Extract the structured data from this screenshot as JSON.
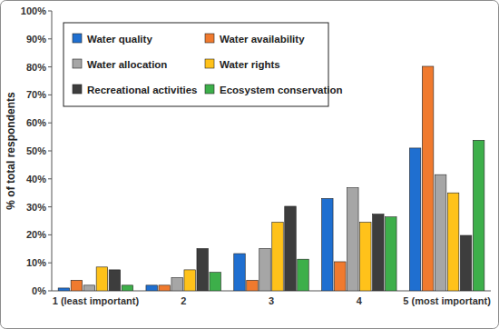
{
  "chart_data": {
    "type": "bar",
    "y_label": "% of total respondents",
    "categories": [
      "1 (least important)",
      "2",
      "3",
      "4",
      "5 (most important)"
    ],
    "series": [
      {
        "name": "Water quality",
        "color": "#1f6fd0",
        "values": [
          1.0,
          2.0,
          13.3,
          33.0,
          51.0
        ]
      },
      {
        "name": "Water availability",
        "color": "#f07a2e",
        "values": [
          3.8,
          2.0,
          3.8,
          10.4,
          80.2
        ]
      },
      {
        "name": "Water allocation",
        "color": "#a6a6a6",
        "values": [
          2.0,
          4.7,
          15.1,
          36.8,
          41.5
        ]
      },
      {
        "name": "Water rights",
        "color": "#ffc21a",
        "values": [
          8.5,
          7.5,
          24.5,
          24.5,
          35.0
        ]
      },
      {
        "name": "Recreational activities",
        "color": "#3d3d3d",
        "values": [
          7.5,
          15.1,
          30.2,
          27.4,
          19.8
        ]
      },
      {
        "name": "Ecosystem conservation",
        "color": "#3daf4a",
        "values": [
          2.0,
          6.6,
          11.3,
          26.4,
          53.8
        ]
      }
    ],
    "ylim": [
      0,
      100
    ],
    "yticks": [
      {
        "value": 0,
        "label": "0%"
      },
      {
        "value": 10,
        "label": "10%"
      },
      {
        "value": 20,
        "label": "20%"
      },
      {
        "value": 30,
        "label": "30%"
      },
      {
        "value": 40,
        "label": "40%"
      },
      {
        "value": 50,
        "label": "50%"
      },
      {
        "value": 60,
        "label": "60%"
      },
      {
        "value": 70,
        "label": "70%"
      },
      {
        "value": 80,
        "label": "80%"
      },
      {
        "value": 90,
        "label": "90%"
      },
      {
        "value": 100,
        "label": "100%"
      }
    ],
    "grid": false,
    "legend": "top-left"
  }
}
